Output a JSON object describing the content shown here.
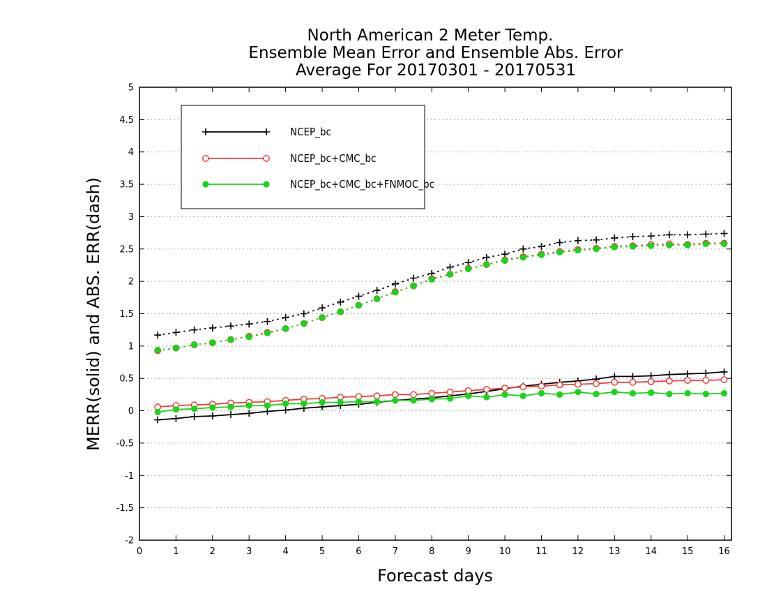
{
  "chart_data": {
    "type": "line",
    "title_lines": [
      "North American 2 Meter Temp.",
      "Ensemble Mean Error and Ensemble Abs. Error",
      "Average For 20170301 - 20170531"
    ],
    "xlabel": "Forecast days",
    "ylabel": "MERR(solid) and ABS. ERR(dash)",
    "xlim": [
      0,
      16.2
    ],
    "ylim": [
      -2,
      5
    ],
    "xticks": [
      0,
      1,
      2,
      3,
      4,
      5,
      6,
      7,
      8,
      9,
      10,
      11,
      12,
      13,
      14,
      15,
      16
    ],
    "yticks": [
      -2,
      -1.5,
      -1,
      -0.5,
      0,
      0.5,
      1,
      1.5,
      2,
      2.5,
      3,
      3.5,
      4,
      4.5,
      5
    ],
    "ytick_labels": [
      "-2",
      "-1.5",
      "-1",
      "-0.5",
      "0",
      "0.5",
      "1",
      "1.5",
      "2",
      "2.5",
      "3",
      "3.5",
      "4",
      "4.5",
      "5"
    ],
    "grid": "dotted horizontal",
    "legend_position": "top-left",
    "x": [
      0.5,
      1,
      1.5,
      2,
      2.5,
      3,
      3.5,
      4,
      4.5,
      5,
      5.5,
      6,
      6.5,
      7,
      7.5,
      8,
      8.5,
      9,
      9.5,
      10,
      10.5,
      11,
      11.5,
      12,
      12.5,
      13,
      13.5,
      14,
      14.5,
      15,
      15.5,
      16
    ],
    "series": [
      {
        "name": "NCEP_bc",
        "color": "#000000",
        "marker": "plus",
        "merr": [
          -0.14,
          -0.12,
          -0.09,
          -0.08,
          -0.06,
          -0.04,
          -0.01,
          0.01,
          0.04,
          0.06,
          0.08,
          0.1,
          0.13,
          0.16,
          0.18,
          0.2,
          0.23,
          0.26,
          0.3,
          0.34,
          0.38,
          0.41,
          0.44,
          0.46,
          0.49,
          0.53,
          0.53,
          0.54,
          0.56,
          0.57,
          0.58,
          0.6
        ],
        "abs_err": [
          1.17,
          1.21,
          1.25,
          1.28,
          1.31,
          1.34,
          1.38,
          1.44,
          1.5,
          1.59,
          1.68,
          1.77,
          1.86,
          1.96,
          2.05,
          2.12,
          2.22,
          2.29,
          2.37,
          2.42,
          2.5,
          2.54,
          2.6,
          2.63,
          2.64,
          2.67,
          2.69,
          2.7,
          2.72,
          2.72,
          2.73,
          2.74
        ]
      },
      {
        "name": "NCEP_bc+CMC_bc",
        "color": "#f03c3c",
        "marker": "open-circle",
        "merr": [
          0.06,
          0.08,
          0.09,
          0.1,
          0.12,
          0.13,
          0.14,
          0.16,
          0.18,
          0.19,
          0.21,
          0.22,
          0.23,
          0.25,
          0.25,
          0.27,
          0.29,
          0.31,
          0.33,
          0.35,
          0.37,
          0.38,
          0.4,
          0.41,
          0.42,
          0.44,
          0.44,
          0.45,
          0.46,
          0.47,
          0.47,
          0.48
        ],
        "abs_err": [
          0.93,
          0.97,
          1.02,
          1.05,
          1.1,
          1.15,
          1.21,
          1.27,
          1.35,
          1.44,
          1.53,
          1.63,
          1.73,
          1.84,
          1.93,
          2.04,
          2.11,
          2.2,
          2.26,
          2.33,
          2.38,
          2.42,
          2.46,
          2.49,
          2.51,
          2.54,
          2.55,
          2.57,
          2.58,
          2.57,
          2.59,
          2.59
        ]
      },
      {
        "name": "NCEP_bc+CMC_bc+FNMOC_bc",
        "color": "#19d419",
        "marker": "filled-circle",
        "merr": [
          -0.02,
          0.02,
          0.03,
          0.05,
          0.06,
          0.08,
          0.08,
          0.11,
          0.11,
          0.13,
          0.13,
          0.14,
          0.14,
          0.16,
          0.16,
          0.18,
          0.19,
          0.23,
          0.21,
          0.25,
          0.23,
          0.27,
          0.25,
          0.29,
          0.26,
          0.29,
          0.27,
          0.28,
          0.26,
          0.27,
          0.26,
          0.27
        ],
        "abs_err": [
          0.94,
          0.97,
          1.02,
          1.05,
          1.1,
          1.14,
          1.2,
          1.27,
          1.35,
          1.44,
          1.53,
          1.63,
          1.73,
          1.83,
          1.93,
          2.03,
          2.11,
          2.19,
          2.26,
          2.32,
          2.37,
          2.41,
          2.45,
          2.48,
          2.5,
          2.53,
          2.54,
          2.55,
          2.56,
          2.56,
          2.58,
          2.58
        ]
      }
    ]
  }
}
